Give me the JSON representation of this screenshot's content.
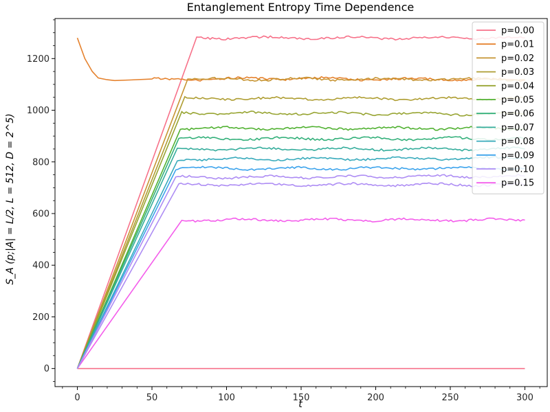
{
  "chart_data": {
    "type": "line",
    "title": "Entanglement Entropy Time Dependence",
    "xlabel": "t",
    "ylabel": "S_A (p;|A| = L/2, L = 512, D = 2^5)",
    "xlim": [
      -15,
      315
    ],
    "ylim": [
      -70,
      1355
    ],
    "xticks": [
      0,
      50,
      100,
      150,
      200,
      250,
      300
    ],
    "yticks": [
      0,
      200,
      400,
      600,
      800,
      1000,
      1200
    ],
    "grid": false,
    "legend_position": "top-right",
    "t_max": 300,
    "series": [
      {
        "name": "p=0.00",
        "color": "#f77189",
        "points": [
          [
            0,
            0
          ],
          [
            80,
            1280
          ],
          [
            300,
            1280
          ]
        ],
        "baseline_zero": true
      },
      {
        "name": "p=0.01",
        "color": "#e5822e",
        "points": [
          [
            0,
            1280
          ],
          [
            5,
            1200
          ],
          [
            10,
            1150
          ],
          [
            14,
            1125
          ],
          [
            20,
            1118
          ],
          [
            25,
            1115
          ],
          [
            35,
            1117
          ],
          [
            50,
            1118
          ],
          [
            75,
            1120
          ],
          [
            100,
            1122
          ],
          [
            150,
            1123
          ],
          [
            200,
            1120
          ],
          [
            250,
            1120
          ],
          [
            300,
            1115
          ]
        ]
      },
      {
        "name": "p=0.02",
        "color": "#c69432",
        "points": [
          [
            0,
            0
          ],
          [
            74,
            1120
          ],
          [
            300,
            1120
          ]
        ]
      },
      {
        "name": "p=0.03",
        "color": "#ae9d31",
        "points": [
          [
            0,
            0
          ],
          [
            72,
            1045
          ],
          [
            300,
            1045
          ]
        ]
      },
      {
        "name": "p=0.04",
        "color": "#97a431",
        "points": [
          [
            0,
            0
          ],
          [
            70,
            990
          ],
          [
            300,
            985
          ]
        ]
      },
      {
        "name": "p=0.05",
        "color": "#50b131",
        "points": [
          [
            0,
            0
          ],
          [
            69,
            930
          ],
          [
            300,
            930
          ]
        ]
      },
      {
        "name": "p=0.06",
        "color": "#33b07a",
        "points": [
          [
            0,
            0
          ],
          [
            68,
            890
          ],
          [
            300,
            890
          ]
        ]
      },
      {
        "name": "p=0.07",
        "color": "#35ad9c",
        "points": [
          [
            0,
            0
          ],
          [
            67,
            850
          ],
          [
            300,
            850
          ]
        ]
      },
      {
        "name": "p=0.08",
        "color": "#37aabb",
        "points": [
          [
            0,
            0
          ],
          [
            67,
            810
          ],
          [
            300,
            815
          ]
        ]
      },
      {
        "name": "p=0.09",
        "color": "#3ba3ec",
        "points": [
          [
            0,
            0
          ],
          [
            66,
            775
          ],
          [
            300,
            775
          ]
        ]
      },
      {
        "name": "p=0.10",
        "color": "#ad8cf4",
        "points": [
          [
            0,
            0
          ],
          [
            66,
            740
          ],
          [
            300,
            745
          ]
        ]
      },
      {
        "name": "p=0.15",
        "color": "#f45deb",
        "points": [
          [
            0,
            0
          ],
          [
            70,
            575
          ],
          [
            300,
            575
          ]
        ]
      }
    ],
    "extra_series": [
      {
        "name": "p=0.10 lower",
        "color": "#ad8cf4",
        "points": [
          [
            0,
            0
          ],
          [
            68,
            712
          ],
          [
            300,
            712
          ]
        ]
      }
    ]
  }
}
